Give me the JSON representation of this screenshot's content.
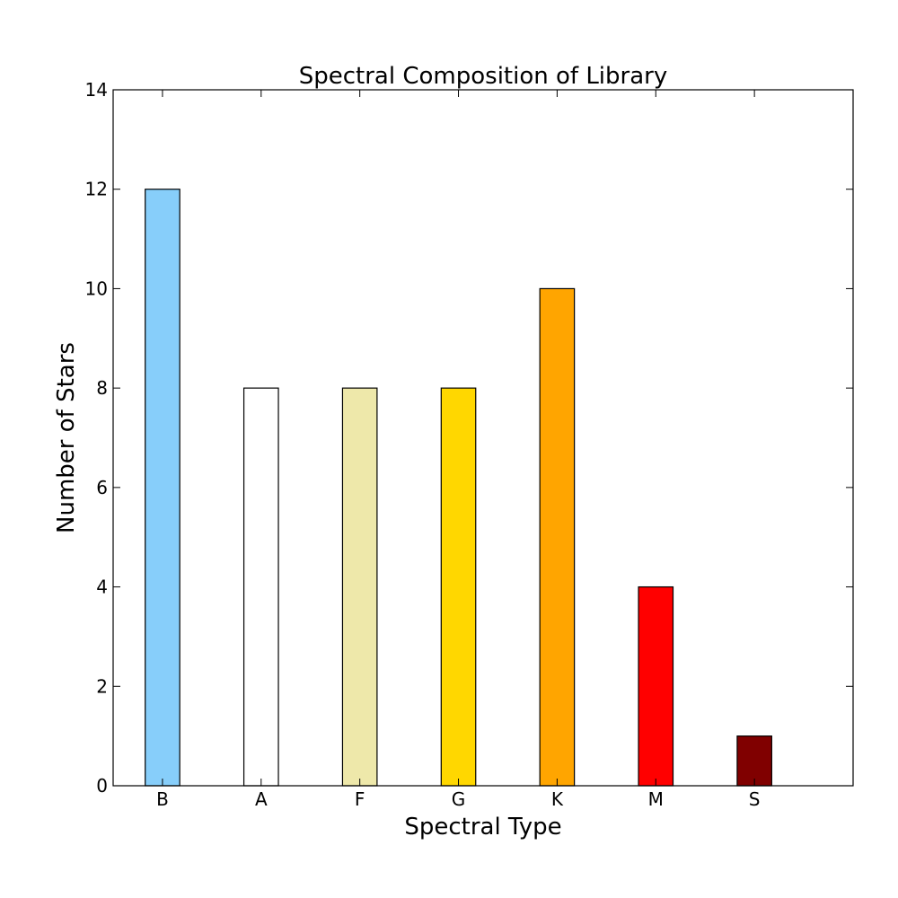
{
  "chart_data": {
    "type": "bar",
    "title": "Spectral Composition of Library",
    "xlabel": "Spectral Type",
    "ylabel": "Number of Stars",
    "categories": [
      "B",
      "A",
      "F",
      "G",
      "K",
      "M",
      "S"
    ],
    "values": [
      12,
      8,
      8,
      8,
      10,
      4,
      1
    ],
    "bar_colors": [
      "#87cefa",
      "#ffffff",
      "#eee8aa",
      "#ffd700",
      "#ffa500",
      "#ff0000",
      "#800000"
    ],
    "ylim": [
      0,
      14
    ],
    "yticks": [
      "0",
      "2",
      "4",
      "6",
      "8",
      "10",
      "12",
      "14"
    ],
    "grid": false
  }
}
